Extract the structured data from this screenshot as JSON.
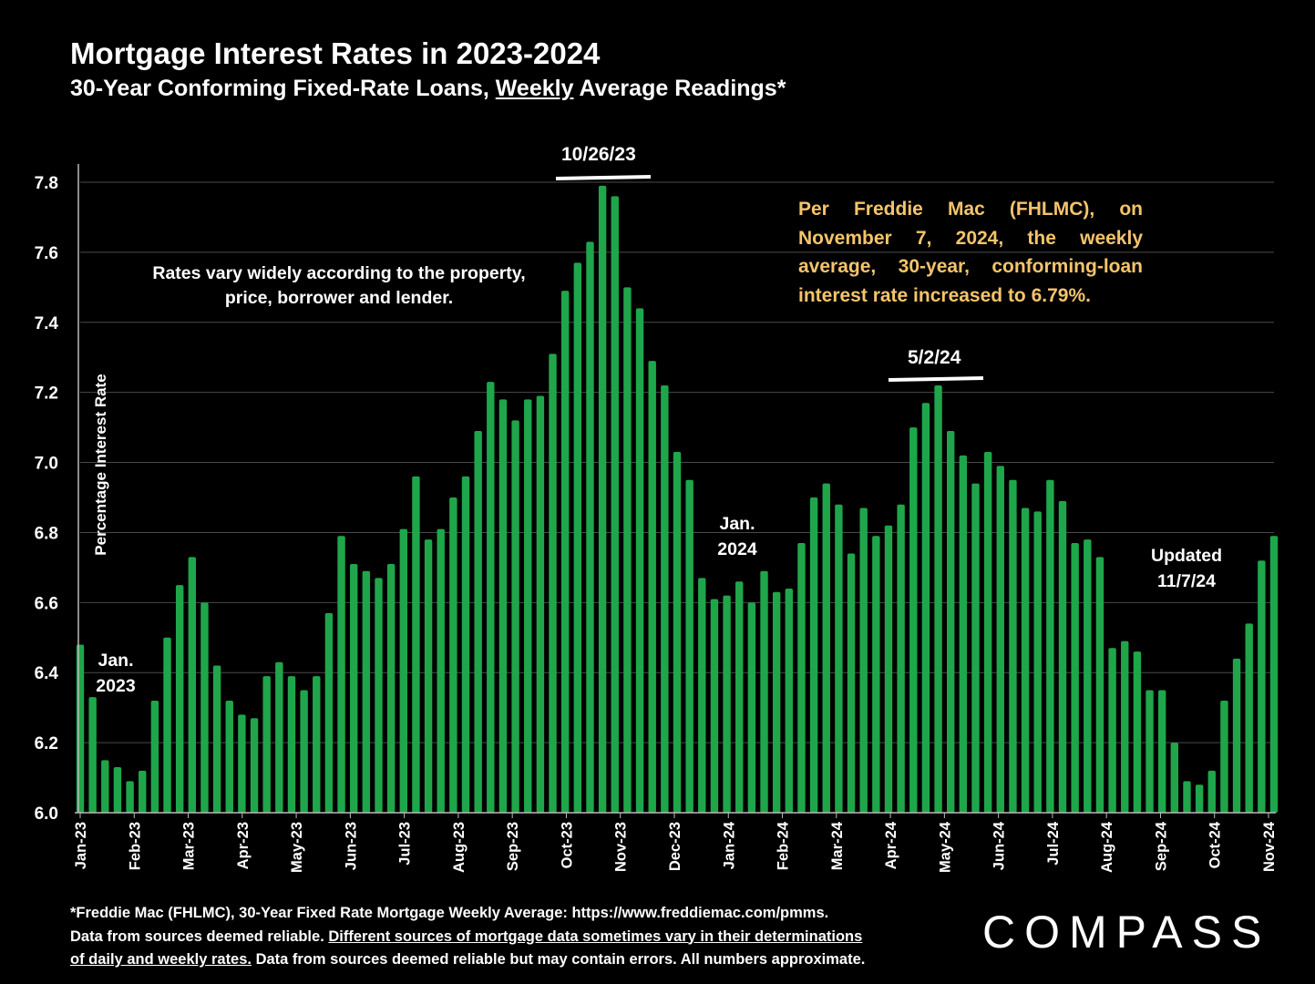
{
  "title": "Mortgage Interest Rates in 2023-2024",
  "subtitle_pre": "30-Year Conforming Fixed-Rate Loans, ",
  "subtitle_underlined": "Weekly",
  "subtitle_post": " Average Readings*",
  "annotations": {
    "rates_vary_line1": "Rates vary widely according to the property,",
    "rates_vary_line2": "price, borrower and lender.",
    "freddie_note": "Per Freddie Mac (FHLMC), on November 7, 2024, the weekly average, 30-year, conforming-loan interest rate increased to 6.79%.",
    "peak1": "10/26/23",
    "peak2": "5/2/24",
    "jan23_line1": "Jan.",
    "jan23_line2": "2023",
    "jan24_line1": "Jan.",
    "jan24_line2": "2024",
    "updated_line1": "Updated",
    "updated_line2": "11/7/24"
  },
  "footer": {
    "line1": "*Freddie Mac (FHLMC), 30-Year Fixed Rate Mortgage Weekly Average:  https://www.freddiemac.com/pmms.",
    "line2_pre": "Data from sources deemed reliable. ",
    "line2_underlined": "Different sources of mortgage data sometimes vary in their determinations",
    "line3_underlined": "of daily and weekly rates.",
    "line3_post": " Data from sources deemed reliable but may contain errors. All numbers approximate."
  },
  "logo_text": "COMPASS",
  "colors": {
    "bar": "#1fa64b",
    "background": "#000000",
    "accent_text": "#f5c46b",
    "grid": "#4a4a4a"
  },
  "chart_data": {
    "type": "bar",
    "ylabel": "Percentage Interest  Rate",
    "ylim": [
      6.0,
      7.8
    ],
    "yticks": [
      "6.0",
      "6.2",
      "6.4",
      "6.6",
      "6.8",
      "7.0",
      "7.2",
      "7.4",
      "7.6",
      "7.8"
    ],
    "x_tick_labels": [
      "Jan-23",
      "Feb-23",
      "Mar-23",
      "Apr-23",
      "May-23",
      "Jun-23",
      "Jul-23",
      "Aug-23",
      "Sep-23",
      "Oct-23",
      "Nov-23",
      "Dec-23",
      "Jan-24",
      "Feb-24",
      "Mar-24",
      "Apr-24",
      "May-24",
      "Jun-24",
      "Jul-24",
      "Aug-24",
      "Sep-24",
      "Oct-24",
      "Nov-24"
    ],
    "grid": true,
    "series": [
      {
        "values": [
          6.48,
          6.33,
          6.15,
          6.13,
          6.09,
          6.12,
          6.32,
          6.5,
          6.65,
          6.73,
          6.6,
          6.42,
          6.32,
          6.28,
          6.27,
          6.39,
          6.43,
          6.39,
          6.35,
          6.39,
          6.57,
          6.79,
          6.71,
          6.69,
          6.67,
          6.71,
          6.81,
          6.96,
          6.78,
          6.81,
          6.9,
          6.96,
          7.09,
          7.23,
          7.18,
          7.12,
          7.18,
          7.19,
          7.31,
          7.49,
          7.57,
          7.63,
          7.79,
          7.76,
          7.5,
          7.44,
          7.29,
          7.22,
          7.03,
          6.95,
          6.67,
          6.61,
          6.62,
          6.66,
          6.6,
          6.69,
          6.63,
          6.64,
          6.77,
          6.9,
          6.94,
          6.88,
          6.74,
          6.87,
          6.79,
          6.82,
          6.88,
          7.1,
          7.17,
          7.22,
          7.09,
          7.02,
          6.94,
          7.03,
          6.99,
          6.95,
          6.87,
          6.86,
          6.95,
          6.89,
          6.77,
          6.78,
          6.73,
          6.47,
          6.49,
          6.46,
          6.35,
          6.35,
          6.2,
          6.09,
          6.08,
          6.12,
          6.32,
          6.44,
          6.54,
          6.72,
          6.79
        ]
      }
    ]
  }
}
